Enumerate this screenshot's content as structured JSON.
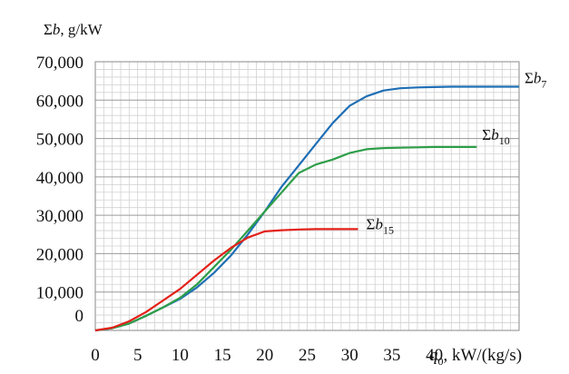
{
  "chart_data": {
    "type": "line",
    "title": "",
    "ylabel": {
      "prefix": "Σ",
      "var": "b",
      "unit": ", g/kW"
    },
    "xlabel": {
      "var": "q",
      "sub": "0",
      "unit": ", kW/(kg/s)"
    },
    "xlim": [
      0,
      50
    ],
    "ylim": [
      0,
      70000
    ],
    "x_ticks": [
      0,
      5,
      10,
      15,
      20,
      25,
      30,
      35,
      40
    ],
    "x_tick_labels": [
      "0",
      "5",
      "10",
      "15",
      "20",
      "25",
      "30",
      "35",
      "40"
    ],
    "y_ticks": [
      0,
      10000,
      20000,
      30000,
      40000,
      50000,
      60000,
      70000
    ],
    "y_tick_labels": [
      "0",
      "10,000",
      "20,000",
      "30,000",
      "40,000",
      "50,000",
      "60,000",
      "70,000"
    ],
    "grid": {
      "x_step": 1,
      "y_step": 2000
    },
    "legend": "inline labels at line ends",
    "series": [
      {
        "name": {
          "prefix": "Σ",
          "var": "b",
          "sub": "7"
        },
        "color": "#1f6fb5",
        "x": [
          0,
          2,
          4,
          6,
          8,
          10,
          12,
          14,
          16,
          18,
          20,
          22,
          24,
          26,
          28,
          30,
          32,
          34,
          36,
          38,
          40,
          42,
          44,
          46,
          48,
          50
        ],
        "y": [
          0,
          600,
          1800,
          3800,
          6000,
          8200,
          11200,
          15000,
          19500,
          25000,
          31000,
          37500,
          43000,
          48500,
          54000,
          58500,
          61000,
          62500,
          63100,
          63300,
          63400,
          63500,
          63500,
          63500,
          63500,
          63500
        ]
      },
      {
        "name": {
          "prefix": "Σ",
          "var": "b",
          "sub": "10"
        },
        "color": "#2e9e48",
        "x": [
          0,
          2,
          4,
          6,
          8,
          10,
          12,
          14,
          16,
          18,
          20,
          22,
          24,
          26,
          28,
          30,
          32,
          34,
          36,
          38,
          40,
          42,
          44,
          45
        ],
        "y": [
          0,
          600,
          1800,
          3800,
          6000,
          8500,
          12000,
          16500,
          21000,
          26000,
          31000,
          36000,
          41000,
          43200,
          44500,
          46200,
          47200,
          47500,
          47600,
          47700,
          47800,
          47800,
          47800,
          47800
        ]
      },
      {
        "name": {
          "prefix": "Σ",
          "var": "b",
          "sub": "15"
        },
        "color": "#e32119",
        "x": [
          0,
          2,
          4,
          6,
          8,
          10,
          12,
          14,
          16,
          18,
          20,
          22,
          24,
          26,
          28,
          30,
          31
        ],
        "y": [
          0,
          700,
          2400,
          4800,
          7800,
          10800,
          14500,
          18200,
          21500,
          24200,
          25800,
          26100,
          26300,
          26400,
          26400,
          26400,
          26400
        ]
      }
    ]
  }
}
